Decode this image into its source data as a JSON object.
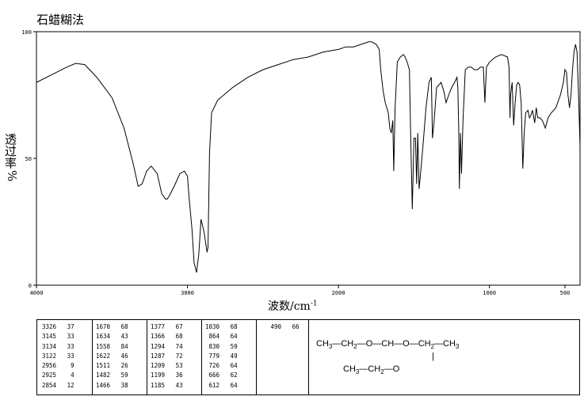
{
  "title": "石蜡糊法",
  "ylabel": {
    "text": "透过率",
    "unit": "%"
  },
  "xlabel": {
    "text": "波数/cm",
    "sup": "-1"
  },
  "chart_data": {
    "type": "line",
    "xlim": [
      4000,
      400
    ],
    "ylim": [
      0,
      100
    ],
    "x_ticks": [
      4000,
      3000,
      2000,
      1000,
      500
    ],
    "y_ticks": [
      0,
      50,
      100
    ],
    "series": [
      {
        "x": [
          4000,
          3900,
          3800,
          3740,
          3680,
          3600,
          3500,
          3420,
          3360,
          3326,
          3300,
          3270,
          3240,
          3200,
          3170,
          3145,
          3134,
          3122,
          3080,
          3050,
          3020,
          3000,
          2990,
          2970,
          2956,
          2940,
          2925,
          2910,
          2890,
          2870,
          2864,
          2854,
          2840,
          2800,
          2700,
          2600,
          2500,
          2400,
          2300,
          2200,
          2100,
          2000,
          1950,
          1900,
          1850,
          1800,
          1780,
          1750,
          1730,
          1720,
          1705,
          1690,
          1670,
          1660,
          1650,
          1640,
          1634,
          1625,
          1610,
          1590,
          1570,
          1558,
          1545,
          1530,
          1522,
          1511,
          1500,
          1490,
          1482,
          1475,
          1466,
          1455,
          1440,
          1420,
          1400,
          1385,
          1377,
          1366,
          1350,
          1320,
          1300,
          1294,
          1287,
          1270,
          1250,
          1230,
          1215,
          1209,
          1203,
          1199,
          1192,
          1185,
          1175,
          1160,
          1140,
          1120,
          1100,
          1080,
          1060,
          1040,
          1030,
          1020,
          1000,
          960,
          920,
          880,
          870,
          864,
          860,
          850,
          840,
          830,
          820,
          810,
          800,
          790,
          779,
          770,
          760,
          745,
          735,
          726,
          715,
          700,
          690,
          680,
          666,
          650,
          630,
          612,
          590,
          560,
          530,
          510,
          500,
          490,
          480,
          470,
          460,
          450,
          440,
          430,
          420,
          410,
          400
        ],
        "y": [
          80,
          83,
          86,
          87.5,
          87,
          82,
          74,
          62,
          48,
          39,
          40,
          45,
          47,
          44,
          36,
          34,
          34,
          35,
          40,
          44,
          45,
          43,
          35,
          22,
          9,
          5,
          12,
          26,
          21,
          13,
          15,
          52,
          68,
          73,
          78,
          82,
          85,
          87,
          89,
          90,
          92,
          93,
          94,
          94,
          95,
          96,
          96,
          95,
          93,
          85,
          77,
          72,
          68,
          62,
          60,
          65,
          45,
          70,
          88,
          90,
          91,
          90,
          88,
          85,
          60,
          30,
          58,
          58,
          40,
          60,
          38,
          45,
          55,
          70,
          80,
          82,
          58,
          65,
          78,
          80,
          76,
          74,
          72,
          75,
          78,
          80,
          82,
          78,
          60,
          38,
          60,
          44,
          65,
          85,
          86,
          86,
          85,
          85,
          86,
          86,
          72,
          86,
          88,
          90,
          91,
          90,
          86,
          66,
          75,
          80,
          63,
          72,
          79,
          80,
          79,
          72,
          46,
          60,
          68,
          69,
          66,
          67,
          69,
          64,
          70,
          66,
          66,
          65,
          62,
          66,
          68,
          70,
          75,
          80,
          85,
          84,
          75,
          70,
          75,
          85,
          92,
          95,
          92,
          75,
          55
        ]
      }
    ],
    "peak_table": [
      [
        [
          "3326",
          "37"
        ],
        [
          "3145",
          "33"
        ],
        [
          "3134",
          "33"
        ],
        [
          "3122",
          "33"
        ],
        [
          "2956",
          "9"
        ],
        [
          "2925",
          "4"
        ],
        [
          "2854",
          "12"
        ]
      ],
      [
        [
          "1670",
          "68"
        ],
        [
          "1634",
          "43"
        ],
        [
          "1558",
          "84"
        ],
        [
          "1622",
          "46"
        ],
        [
          "1511",
          "26"
        ],
        [
          "1482",
          "59"
        ],
        [
          "1466",
          "38"
        ]
      ],
      [
        [
          "1377",
          "67"
        ],
        [
          "1366",
          "68"
        ],
        [
          "1294",
          "74"
        ],
        [
          "1287",
          "72"
        ],
        [
          "1209",
          "53"
        ],
        [
          "1199",
          "36"
        ],
        [
          "1185",
          "43"
        ]
      ],
      [
        [
          "1030",
          "68"
        ],
        [
          "864",
          "64"
        ],
        [
          "830",
          "59"
        ],
        [
          "779",
          "49"
        ],
        [
          "726",
          "64"
        ],
        [
          "666",
          "62"
        ],
        [
          "612",
          "64"
        ]
      ],
      [
        [
          "490",
          "66"
        ]
      ]
    ]
  },
  "structure": {
    "line1": [
      "CH",
      "3",
      "—CH",
      "2",
      "—O—CH—O—CH",
      "2",
      "—CH",
      "3"
    ],
    "line2": [
      "CH",
      "3",
      "—CH",
      "2",
      "—O"
    ],
    "vbond": "|"
  }
}
